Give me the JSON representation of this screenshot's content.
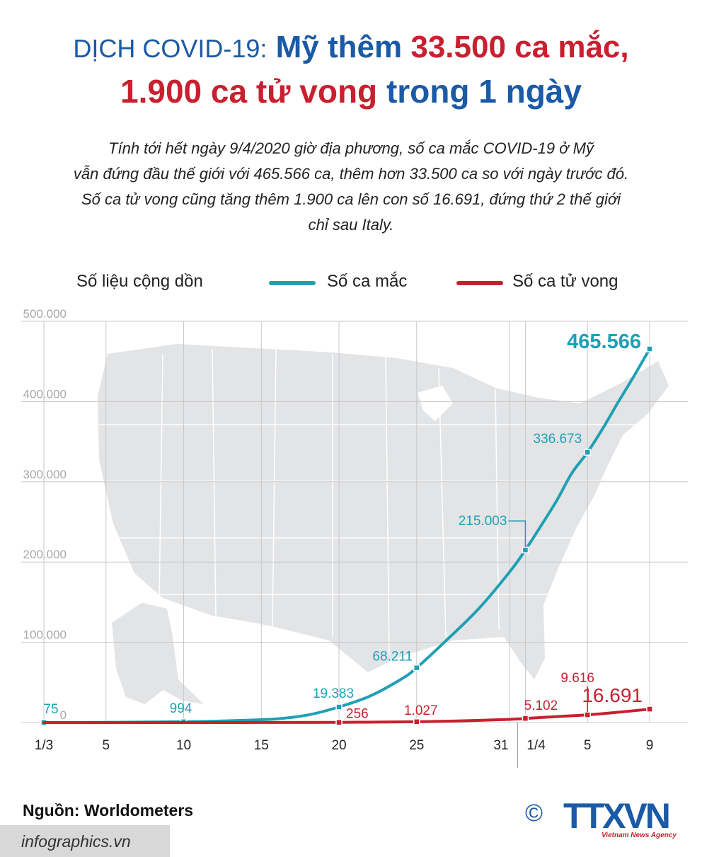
{
  "header": {
    "title_prefix": "DỊCH COVID-19:",
    "title_part1": "Mỹ thêm",
    "title_highlight1": "33.500 ca mắc,",
    "title_highlight2": "1.900 ca tử vong",
    "title_part2": "trong 1 ngày"
  },
  "intro": {
    "line1": "Tính tới hết ngày 9/4/2020 giờ địa phương, số ca mắc COVID-19 ở Mỹ",
    "line2": "vẫn đứng đầu thế giới với 465.566 ca, thêm hơn 33.500 ca so với ngày trước đó.",
    "line3": "Số ca tử vong cũng tăng thêm 1.900 ca lên con số 16.691, đứng thứ 2 thế giới",
    "line4": "chỉ sau Italy."
  },
  "legend": {
    "title": "Số liệu cộng dồn",
    "cases_label": "Số ca mắc",
    "deaths_label": "Số ca tử vong"
  },
  "colors": {
    "cases": "#1fa0b5",
    "deaths": "#c8202f",
    "title_blue": "#1a5aa6",
    "map": "#e3e4e6",
    "grid": "#c8c8c8"
  },
  "chart_data": {
    "type": "line",
    "ylim": [
      0,
      500000
    ],
    "yticks": [
      {
        "value": 500000,
        "label": "500.000"
      },
      {
        "value": 400000,
        "label": "400.000"
      },
      {
        "value": 300000,
        "label": "300.000"
      },
      {
        "value": 200000,
        "label": "200.000"
      },
      {
        "value": 100000,
        "label": "100.000"
      },
      {
        "value": 0,
        "label": "0"
      }
    ],
    "xticks": [
      {
        "date": "2020-03-01",
        "label": "1/3"
      },
      {
        "date": "2020-03-05",
        "label": "5"
      },
      {
        "date": "2020-03-10",
        "label": "10"
      },
      {
        "date": "2020-03-15",
        "label": "15"
      },
      {
        "date": "2020-03-20",
        "label": "20"
      },
      {
        "date": "2020-03-25",
        "label": "25"
      },
      {
        "date": "2020-03-31",
        "label": "31"
      },
      {
        "date": "2020-04-01",
        "label": "1/4"
      },
      {
        "date": "2020-04-05",
        "label": "5"
      },
      {
        "date": "2020-04-09",
        "label": "9"
      }
    ],
    "grid": true,
    "legend_position": "top",
    "series": [
      {
        "name": "Số ca mắc",
        "color": "#1fa0b5",
        "points": [
          {
            "x": "2020-03-01",
            "y": 75,
            "label": "75"
          },
          {
            "x": "2020-03-05",
            "y": 220
          },
          {
            "x": "2020-03-10",
            "y": 994,
            "label": "994"
          },
          {
            "x": "2020-03-12",
            "y": 1700
          },
          {
            "x": "2020-03-14",
            "y": 2900
          },
          {
            "x": "2020-03-16",
            "y": 4600
          },
          {
            "x": "2020-03-18",
            "y": 9400
          },
          {
            "x": "2020-03-20",
            "y": 19383,
            "label": "19.383"
          },
          {
            "x": "2020-03-22",
            "y": 33000
          },
          {
            "x": "2020-03-24",
            "y": 54000
          },
          {
            "x": "2020-03-25",
            "y": 68211,
            "label": "68.211"
          },
          {
            "x": "2020-03-27",
            "y": 104000
          },
          {
            "x": "2020-03-29",
            "y": 142000
          },
          {
            "x": "2020-03-31",
            "y": 188000
          },
          {
            "x": "2020-04-01",
            "y": 215003,
            "label": "215.003"
          },
          {
            "x": "2020-04-02",
            "y": 245000
          },
          {
            "x": "2020-04-03",
            "y": 276000
          },
          {
            "x": "2020-04-04",
            "y": 311000
          },
          {
            "x": "2020-04-05",
            "y": 336673,
            "label": "336.673"
          },
          {
            "x": "2020-04-06",
            "y": 367000
          },
          {
            "x": "2020-04-07",
            "y": 400000
          },
          {
            "x": "2020-04-08",
            "y": 432000
          },
          {
            "x": "2020-04-09",
            "y": 465566,
            "label": "465.566"
          }
        ]
      },
      {
        "name": "Số ca tử vong",
        "color": "#c8202f",
        "points": [
          {
            "x": "2020-03-01",
            "y": 1
          },
          {
            "x": "2020-03-10",
            "y": 31
          },
          {
            "x": "2020-03-15",
            "y": 70
          },
          {
            "x": "2020-03-20",
            "y": 256,
            "label": "256"
          },
          {
            "x": "2020-03-25",
            "y": 1027,
            "label": "1.027"
          },
          {
            "x": "2020-03-28",
            "y": 2200
          },
          {
            "x": "2020-03-31",
            "y": 4000
          },
          {
            "x": "2020-04-01",
            "y": 5102,
            "label": "5.102"
          },
          {
            "x": "2020-04-03",
            "y": 7400
          },
          {
            "x": "2020-04-05",
            "y": 9616,
            "label": "9.616"
          },
          {
            "x": "2020-04-07",
            "y": 12900
          },
          {
            "x": "2020-04-09",
            "y": 16691,
            "label": "16.691"
          }
        ]
      }
    ]
  },
  "footer": {
    "source": "Nguồn: Worldometers",
    "site": "infographics.vn",
    "copyright": "©",
    "logo": "TTXVN",
    "logo_sub": "Vietnam News Agency"
  }
}
